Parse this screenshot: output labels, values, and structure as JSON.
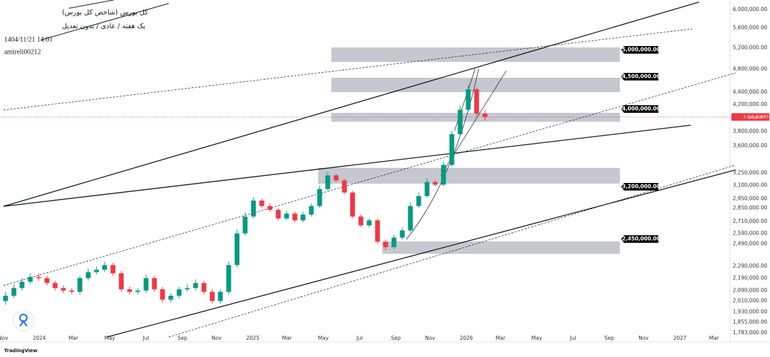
{
  "header": {
    "title": "کل بورس (شاخص کل بورس)",
    "subtitle": "یک هفته / عادی / بدون تعدیل",
    "timestamp": "1404/11/21 14:01",
    "author": "amireli00212"
  },
  "chart_data": {
    "type": "candlestick",
    "x": [
      2023.842,
      2023.881,
      2023.919,
      2023.958,
      2023.997,
      2024.036,
      2024.074,
      2024.113,
      2024.152,
      2024.19,
      2024.229,
      2024.268,
      2024.306,
      2024.345,
      2024.384,
      2024.423,
      2024.461,
      2024.5,
      2024.539,
      2024.577,
      2024.616,
      2024.655,
      2024.693,
      2024.732,
      2024.771,
      2024.81,
      2024.848,
      2024.887,
      2024.926,
      2024.964,
      2025.003,
      2025.042,
      2025.08,
      2025.119,
      2025.158,
      2025.197,
      2025.235,
      2025.274,
      2025.313,
      2025.351,
      2025.39,
      2025.429,
      2025.467,
      2025.506,
      2025.545,
      2025.584,
      2025.622,
      2025.661,
      2025.7,
      2025.738,
      2025.777,
      2025.816,
      2025.854,
      2025.893,
      2025.932,
      2025.971,
      2026.009,
      2026.048,
      2026.087
    ],
    "open": [
      2010000,
      2050000,
      2110000,
      2160000,
      2200000,
      2190000,
      2150000,
      2110000,
      2090000,
      2080000,
      2190000,
      2240000,
      2260000,
      2300000,
      2230000,
      2100000,
      2080000,
      2090000,
      2190000,
      2100000,
      2020000,
      2050000,
      2100000,
      2110000,
      2150000,
      2080000,
      2010000,
      2080000,
      2300000,
      2590000,
      2760000,
      2930000,
      2870000,
      2830000,
      2740000,
      2790000,
      2720000,
      2780000,
      2870000,
      3060000,
      3220000,
      3160000,
      3020000,
      2760000,
      2670000,
      2720000,
      2510000,
      2460000,
      2550000,
      2620000,
      2870000,
      2980000,
      3140000,
      3110000,
      3350000,
      3760000,
      4120000,
      4450000,
      4060000
    ],
    "high": [
      2080000,
      2140000,
      2190000,
      2230000,
      2230000,
      2210000,
      2170000,
      2130000,
      2110000,
      2210000,
      2270000,
      2290000,
      2330000,
      2320000,
      2250000,
      2120000,
      2110000,
      2220000,
      2210000,
      2120000,
      2070000,
      2120000,
      2140000,
      2180000,
      2170000,
      2100000,
      2100000,
      2330000,
      2630000,
      2800000,
      2970000,
      2950000,
      2900000,
      2850000,
      2820000,
      2810000,
      2810000,
      2900000,
      3100000,
      3260000,
      3240000,
      3180000,
      3040000,
      2780000,
      2740000,
      2740000,
      2530000,
      2580000,
      2650000,
      2910000,
      3020000,
      3180000,
      3170000,
      3390000,
      3810000,
      4180000,
      4520000,
      4480000,
      4120000
    ],
    "low": [
      1980000,
      2030000,
      2090000,
      2140000,
      2170000,
      2130000,
      2090000,
      2070000,
      2060000,
      2060000,
      2170000,
      2220000,
      2240000,
      2210000,
      2080000,
      2060000,
      2060000,
      2070000,
      2080000,
      2000000,
      2000000,
      2030000,
      2080000,
      2090000,
      2060000,
      1990000,
      1990000,
      2060000,
      2280000,
      2570000,
      2740000,
      2850000,
      2810000,
      2720000,
      2720000,
      2700000,
      2700000,
      2760000,
      2850000,
      3040000,
      3140000,
      3000000,
      2740000,
      2650000,
      2650000,
      2490000,
      2430000,
      2440000,
      2530000,
      2600000,
      2850000,
      2960000,
      3090000,
      3090000,
      3330000,
      3730000,
      4090000,
      4020000,
      3960000
    ],
    "close": [
      2050000,
      2110000,
      2160000,
      2200000,
      2190000,
      2150000,
      2110000,
      2090000,
      2080000,
      2190000,
      2240000,
      2260000,
      2300000,
      2230000,
      2100000,
      2080000,
      2090000,
      2190000,
      2100000,
      2020000,
      2050000,
      2100000,
      2110000,
      2150000,
      2080000,
      2010000,
      2080000,
      2300000,
      2590000,
      2760000,
      2930000,
      2870000,
      2830000,
      2740000,
      2790000,
      2720000,
      2780000,
      2870000,
      3060000,
      3220000,
      3160000,
      3020000,
      2760000,
      2670000,
      2720000,
      2510000,
      2460000,
      2550000,
      2620000,
      2870000,
      2980000,
      3140000,
      3110000,
      3350000,
      3760000,
      4120000,
      4450000,
      4060000,
      4010000
    ],
    "up_color": "#089981",
    "down_color": "#f23645",
    "xlim": [
      2023.816,
      2027.235
    ],
    "xticks": [
      {
        "value": 2023.83,
        "label": "Nov"
      },
      2024,
      {
        "value": 2024.16,
        "label": "Mar"
      },
      {
        "value": 2024.33,
        "label": "May"
      },
      {
        "value": 2024.5,
        "label": "Jul"
      },
      {
        "value": 2024.67,
        "label": "Sep"
      },
      {
        "value": 2024.83,
        "label": "Nov"
      },
      2025,
      {
        "value": 2025.16,
        "label": "Mar"
      },
      {
        "value": 2025.33,
        "label": "May"
      },
      {
        "value": 2025.5,
        "label": "Jul"
      },
      {
        "value": 2025.67,
        "label": "Sep"
      },
      {
        "value": 2025.83,
        "label": "Nov"
      },
      2026,
      {
        "value": 2026.16,
        "label": "Mar"
      },
      {
        "value": 2026.33,
        "label": "May"
      },
      {
        "value": 2026.5,
        "label": "Jul"
      },
      {
        "value": 2026.67,
        "label": "Sep"
      },
      {
        "value": 2026.83,
        "label": "Nov"
      },
      2027,
      {
        "value": 2027.16,
        "label": "Mar"
      }
    ],
    "ylim": [
      1724000,
      6220000
    ],
    "log_scale": true,
    "grid": false,
    "yticks": [
      {
        "value": 6000000,
        "label": "6,000,000.00"
      },
      {
        "value": 5600000,
        "label": "5,600,000.00"
      },
      {
        "value": 5200000,
        "label": "5,200,000.00"
      },
      {
        "value": 4800000,
        "label": "4,800,000.00"
      },
      {
        "value": 4400000,
        "label": "4,400,000.00"
      },
      {
        "value": 4200000,
        "label": "4,200,000.00"
      },
      {
        "value": 3800000,
        "label": "3,800,000.00"
      },
      {
        "value": 3600000,
        "label": "3,600,000.00"
      },
      {
        "value": 3250000,
        "label": "3,250,000.00"
      },
      {
        "value": 3100000,
        "label": "3,100,000.00"
      },
      {
        "value": 2950000,
        "label": "2,950,000.00"
      },
      {
        "value": 2850000,
        "label": "2,850,000.00"
      },
      {
        "value": 2710000,
        "label": "2,710,000.00"
      },
      {
        "value": 2590000,
        "label": "2,590,000.00"
      },
      {
        "value": 2490000,
        "label": "2,490,000.00"
      },
      {
        "value": 2290000,
        "label": "2,290,000.00"
      },
      {
        "value": 2190000,
        "label": "2,190,000.00"
      },
      {
        "value": 2090000,
        "label": "2,090,000.00"
      },
      {
        "value": 2010000,
        "label": "2,010,000.00"
      },
      {
        "value": 1930000,
        "label": "1,930,000.00"
      },
      {
        "value": 1855000,
        "label": "1,855,000.00"
      },
      {
        "value": 1783000,
        "label": "1,783,000.00"
      }
    ],
    "last_price": {
      "value": 4009858.83,
      "label": "4,009,858.83"
    },
    "last_price_name": "کل بورس",
    "annotations": [
      "5,000,000.00",
      "4,500,000.00",
      "4,000,000.00",
      "3,200,000.00",
      "2,450,000.00"
    ]
  },
  "footer": {
    "brand": "TradingView"
  }
}
